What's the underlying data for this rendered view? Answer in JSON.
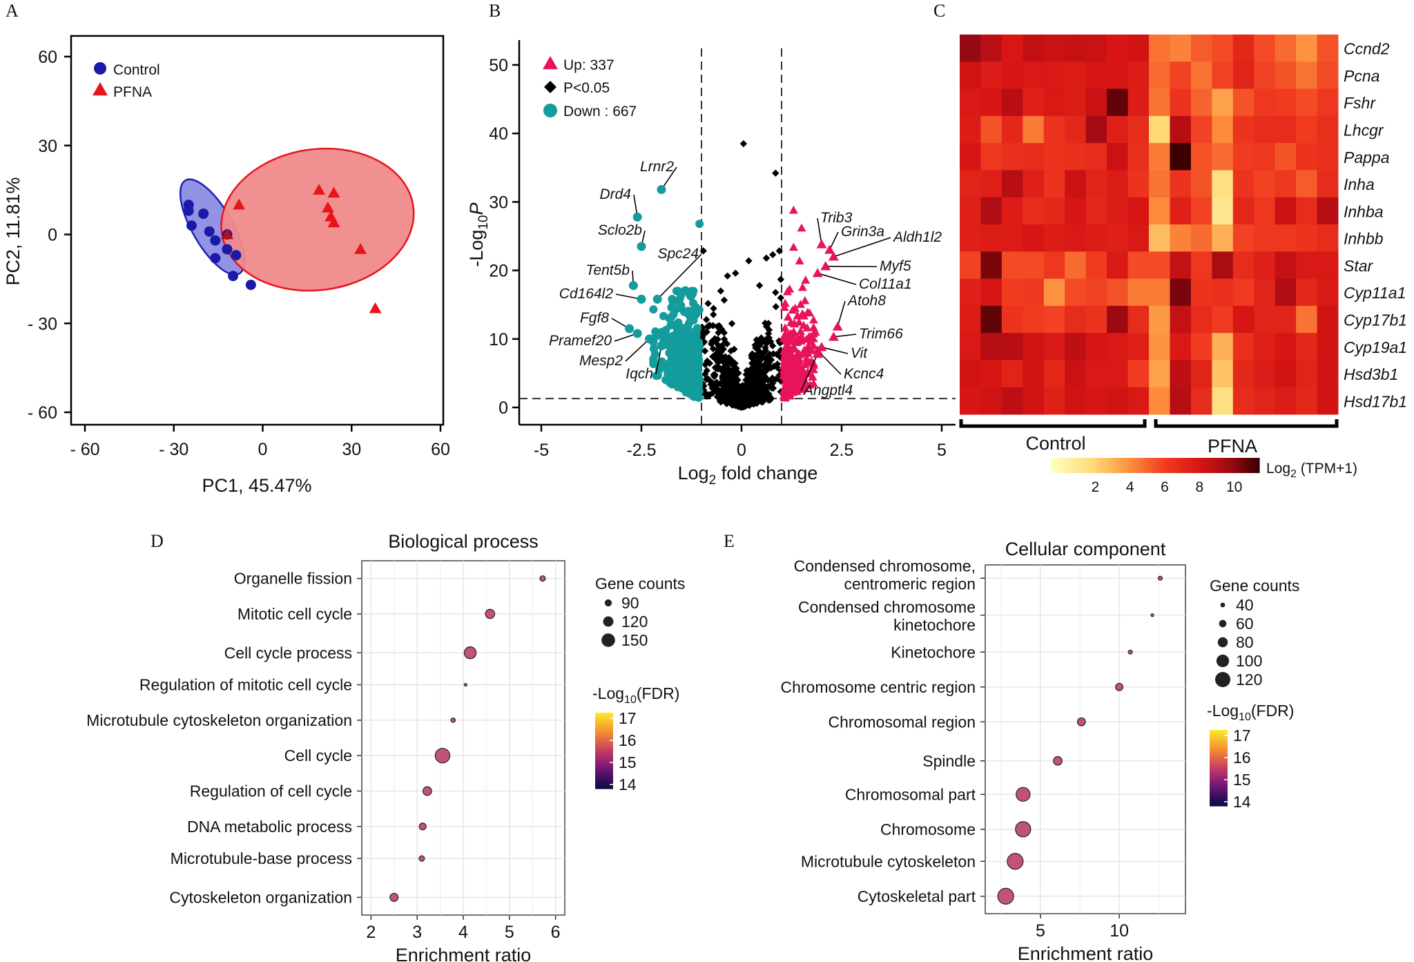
{
  "panels": {
    "a": "A",
    "b": "B",
    "c": "C",
    "d": "D",
    "e": "E"
  },
  "chart_data": [
    {
      "id": "A",
      "type": "scatter",
      "title": "",
      "xlabel": "PC1, 45.47%",
      "ylabel": "PC2, 11.81%",
      "xlim": [
        -66,
        66
      ],
      "ylim": [
        -66,
        66
      ],
      "xticks": [
        "- 60",
        "- 30",
        "0",
        "30",
        "60"
      ],
      "yticks": [
        "60",
        "30",
        "0",
        "- 30",
        "- 60"
      ],
      "legend": [
        "Control",
        "PFNA"
      ],
      "series": [
        {
          "name": "Control",
          "color": "#1a1aa6",
          "points": [
            [
              -25,
              10
            ],
            [
              -25,
              8
            ],
            [
              -20,
              7
            ],
            [
              -24,
              3
            ],
            [
              -18,
              1
            ],
            [
              -12,
              0
            ],
            [
              -16,
              -2
            ],
            [
              -12,
              -5
            ],
            [
              -9,
              -7
            ],
            [
              -16,
              -8
            ],
            [
              -10,
              -14
            ],
            [
              -4,
              -17
            ]
          ]
        },
        {
          "name": "PFNA",
          "color": "#e8141b",
          "points": [
            [
              -8,
              10
            ],
            [
              19,
              15
            ],
            [
              24,
              14
            ],
            [
              22,
              9
            ],
            [
              23,
              6
            ],
            [
              24,
              4
            ],
            [
              33,
              -5
            ],
            [
              38,
              -25
            ],
            [
              -12,
              0
            ]
          ]
        }
      ]
    },
    {
      "id": "B",
      "type": "scatter",
      "xlabel": "Log2 fold change",
      "ylabel": "-Log10P",
      "xlim": [
        -5.5,
        5.2
      ],
      "ylim": [
        -2,
        52
      ],
      "xticks": [
        "-5",
        "-2.5",
        "0",
        "2.5",
        "5"
      ],
      "yticks": [
        "0",
        "10",
        "20",
        "30",
        "40",
        "50"
      ],
      "thresholds": {
        "fc": [
          -1,
          1
        ],
        "p": 1.3
      },
      "legend": [
        "Up: 337",
        "P<0.05",
        "Down : 667"
      ],
      "labeled_down": [
        {
          "gene": "Lrnr2",
          "x": -2.0,
          "y": 31.8
        },
        {
          "gene": "Drd4",
          "x": -2.6,
          "y": 27.8
        },
        {
          "gene": "Sclo2b",
          "x": -2.5,
          "y": 23.5
        },
        {
          "gene": "Spc24",
          "x": -2.1,
          "y": 15.8
        },
        {
          "gene": "Tent5b",
          "x": -2.7,
          "y": 17.8
        },
        {
          "gene": "Cd164l2",
          "x": -2.5,
          "y": 15.8
        },
        {
          "gene": "Fgf8",
          "x": -2.8,
          "y": 11.5
        },
        {
          "gene": "Pramef20",
          "x": -2.6,
          "y": 10.8
        },
        {
          "gene": "Mesp2",
          "x": -2.3,
          "y": 10.0
        },
        {
          "gene": "Iqch",
          "x": -2.0,
          "y": 9.0
        }
      ],
      "labeled_up": [
        {
          "gene": "Trib3",
          "x": 2.0,
          "y": 23.8
        },
        {
          "gene": "Grin3a",
          "x": 2.2,
          "y": 23.0
        },
        {
          "gene": "Aldh1l2",
          "x": 2.3,
          "y": 22.0
        },
        {
          "gene": "Myf5",
          "x": 2.1,
          "y": 20.6
        },
        {
          "gene": "Col11a1",
          "x": 1.9,
          "y": 19.6
        },
        {
          "gene": "Atoh8",
          "x": 2.4,
          "y": 11.8
        },
        {
          "gene": "Trim66",
          "x": 2.3,
          "y": 10.3
        },
        {
          "gene": "Vit",
          "x": 2.0,
          "y": 8.8
        },
        {
          "gene": "Kcnc4",
          "x": 1.9,
          "y": 8.3
        },
        {
          "gene": "Angptl4",
          "x": 1.9,
          "y": 7.8
        }
      ]
    },
    {
      "id": "C",
      "type": "heatmap",
      "genes": [
        "Ccnd2",
        "Pcna",
        "Fshr",
        "Lhcgr",
        "Pappa",
        "Inha",
        "Inhba",
        "Inhbb",
        "Star",
        "Cyp11a1",
        "Cyp17b1",
        "Cyp19a1",
        "Hsd3b1",
        "Hsd17b1"
      ],
      "groups": [
        "Control",
        "PFNA"
      ],
      "n_control": 9,
      "n_pfna": 9,
      "colorbar": {
        "label": "Log2 (TPM+1)",
        "ticks": [
          "2",
          "4",
          "6",
          "8",
          "10"
        ],
        "range": [
          0,
          12
        ]
      },
      "values": [
        [
          10.5,
          9.5,
          8.5,
          9.3,
          9.0,
          9.2,
          9.0,
          8.6,
          8.8,
          5.2,
          4.8,
          5.8,
          6.2,
          7.6,
          6.2,
          5.4,
          4.4,
          6.0
        ],
        [
          8.8,
          8.2,
          8.6,
          8.4,
          8.4,
          8.2,
          8.6,
          8.6,
          8.2,
          5.4,
          6.4,
          5.2,
          6.4,
          7.8,
          6.4,
          6.0,
          5.2,
          6.2
        ],
        [
          8.4,
          8.6,
          9.6,
          8.0,
          8.4,
          8.2,
          9.0,
          11.4,
          8.2,
          5.2,
          7.0,
          5.6,
          4.0,
          6.0,
          6.8,
          6.6,
          6.2,
          6.8
        ],
        [
          8.2,
          6.0,
          7.6,
          5.0,
          7.0,
          7.6,
          10.2,
          8.0,
          7.4,
          2.4,
          9.6,
          6.4,
          4.6,
          7.0,
          7.4,
          7.4,
          6.6,
          7.2
        ],
        [
          8.6,
          6.8,
          7.2,
          7.4,
          7.0,
          7.2,
          7.4,
          9.0,
          7.2,
          5.0,
          12.0,
          6.0,
          5.4,
          6.6,
          6.8,
          6.0,
          7.0,
          7.2
        ],
        [
          7.8,
          8.0,
          9.6,
          8.0,
          7.0,
          9.0,
          7.8,
          8.2,
          7.0,
          5.2,
          7.0,
          6.0,
          2.0,
          7.0,
          6.4,
          6.8,
          5.8,
          7.4
        ],
        [
          8.0,
          9.8,
          8.2,
          7.4,
          7.6,
          8.6,
          7.6,
          8.2,
          8.6,
          4.6,
          8.0,
          6.4,
          1.6,
          7.6,
          6.8,
          9.0,
          7.4,
          9.6
        ],
        [
          8.0,
          8.2,
          8.2,
          8.6,
          8.2,
          8.4,
          8.2,
          8.0,
          8.4,
          3.2,
          4.8,
          5.4,
          3.6,
          6.4,
          6.8,
          6.8,
          7.0,
          7.4
        ],
        [
          6.4,
          11.0,
          6.2,
          6.2,
          6.8,
          5.4,
          6.6,
          8.4,
          6.2,
          6.2,
          9.2,
          6.8,
          10.0,
          7.4,
          8.0,
          9.2,
          8.4,
          8.4
        ],
        [
          8.0,
          8.6,
          6.6,
          6.8,
          4.4,
          6.2,
          6.4,
          6.0,
          5.0,
          5.0,
          11.0,
          7.0,
          7.2,
          6.6,
          7.8,
          9.8,
          7.6,
          8.4
        ],
        [
          8.2,
          11.4,
          7.0,
          6.6,
          6.4,
          7.4,
          7.0,
          10.4,
          7.4,
          4.2,
          9.2,
          7.4,
          6.6,
          8.6,
          7.8,
          7.8,
          5.2,
          8.8
        ],
        [
          8.4,
          9.6,
          9.6,
          8.8,
          8.4,
          9.4,
          8.6,
          8.4,
          8.0,
          4.4,
          8.4,
          6.6,
          3.6,
          7.2,
          8.0,
          8.6,
          7.6,
          8.8
        ],
        [
          8.8,
          8.6,
          7.8,
          8.8,
          7.6,
          9.0,
          8.4,
          8.4,
          6.6,
          4.0,
          9.4,
          7.8,
          3.0,
          7.6,
          8.2,
          8.8,
          7.8,
          8.8
        ],
        [
          8.6,
          8.8,
          9.4,
          8.8,
          8.0,
          8.8,
          8.6,
          8.8,
          8.4,
          4.6,
          9.6,
          7.4,
          2.0,
          7.4,
          7.8,
          8.2,
          7.6,
          8.8
        ]
      ]
    },
    {
      "id": "D",
      "type": "scatter",
      "title": "Biological process",
      "xlabel": "Enrichment ratio",
      "xlim": [
        1.8,
        6.2
      ],
      "xticks": [
        "2",
        "3",
        "4",
        "5",
        "6"
      ],
      "size_legend": {
        "title": "Gene counts",
        "labels": [
          "90",
          "120",
          "150"
        ]
      },
      "color_legend": {
        "title": "-Log10(FDR)",
        "labels": [
          "17",
          "16",
          "15",
          "14"
        ]
      },
      "terms": [
        "Organelle fission",
        "Mitotic cell cycle",
        "Cell cycle process",
        "Regulation of mitotic cell cycle",
        "Microtubule cytoskeleton organization",
        "Cell cycle",
        "Regulation of cell cycle",
        "DNA metabolic process",
        "Microtubule-base process",
        "Cytoskeleton organization"
      ],
      "enrichment": [
        5.72,
        4.58,
        4.15,
        4.05,
        3.78,
        3.55,
        3.22,
        3.12,
        3.1,
        2.5
      ],
      "counts": [
        75,
        110,
        135,
        50,
        65,
        160,
        105,
        88,
        75,
        100
      ],
      "fdr": [
        15.8,
        15.8,
        15.8,
        15.8,
        15.8,
        15.8,
        15.8,
        15.8,
        15.8,
        15.8
      ]
    },
    {
      "id": "E",
      "type": "scatter",
      "title": "Cellular component",
      "xlabel": "Enrichment ratio",
      "xlim": [
        1.5,
        14.2
      ],
      "xticks": [
        "5",
        "10"
      ],
      "size_legend": {
        "title": "Gene counts",
        "labels": [
          "40",
          "60",
          "80",
          "100",
          "120"
        ]
      },
      "color_legend": {
        "title": "-Log10(FDR)",
        "labels": [
          "17",
          "16",
          "15",
          "14"
        ]
      },
      "terms": [
        "Condensed chromosome, centromeric region",
        "Condensed chromosome kinetochore",
        "Kinetochore",
        "Chromosome centric region",
        "Chromosomal region",
        "Spindle",
        "Chromosomal part",
        "Chromosome",
        "Microtubule cytoskeleton",
        "Cytoskeletal part"
      ],
      "term_lines": [
        [
          "Condensed chromosome,",
          "centromeric region"
        ],
        [
          "Condensed chromosome",
          "kinetochore"
        ],
        [
          "Kinetochore"
        ],
        [
          "Chromosome centric region"
        ],
        [
          "Chromosomal region"
        ],
        [
          "Spindle"
        ],
        [
          "Chromosomal part"
        ],
        [
          "Chromosome"
        ],
        [
          "Microtubule cytoskeleton"
        ],
        [
          "Cytoskeletal part"
        ]
      ],
      "enrichment": [
        12.6,
        12.1,
        10.7,
        10.0,
        7.6,
        6.1,
        3.9,
        3.9,
        3.4,
        2.8
      ],
      "counts": [
        35,
        25,
        35,
        60,
        65,
        70,
        110,
        120,
        125,
        125
      ],
      "fdr": [
        15.8,
        15.8,
        15.8,
        15.8,
        15.8,
        15.8,
        15.8,
        15.8,
        15.8,
        15.8
      ]
    }
  ]
}
